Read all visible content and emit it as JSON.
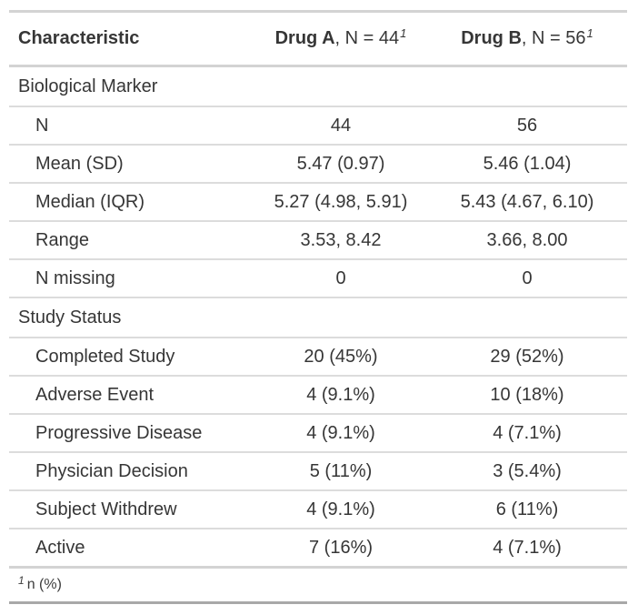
{
  "table": {
    "columns": [
      {
        "label": "Characteristic"
      },
      {
        "name": "Drug A",
        "n_label": ", N = 44",
        "footnote_mark": "1"
      },
      {
        "name": "Drug B",
        "n_label": ", N = 56",
        "footnote_mark": "1"
      }
    ],
    "groups": [
      {
        "label": "Biological Marker",
        "rows": [
          {
            "label": "N",
            "drug_a": "44",
            "drug_b": "56"
          },
          {
            "label": "Mean (SD)",
            "drug_a": "5.47 (0.97)",
            "drug_b": "5.46 (1.04)"
          },
          {
            "label": "Median (IQR)",
            "drug_a": "5.27 (4.98, 5.91)",
            "drug_b": "5.43 (4.67, 6.10)"
          },
          {
            "label": "Range",
            "drug_a": "3.53, 8.42",
            "drug_b": "3.66, 8.00"
          },
          {
            "label": "N missing",
            "drug_a": "0",
            "drug_b": "0"
          }
        ]
      },
      {
        "label": "Study Status",
        "rows": [
          {
            "label": "Completed Study",
            "drug_a": "20 (45%)",
            "drug_b": "29 (52%)"
          },
          {
            "label": "Adverse Event",
            "drug_a": "4 (9.1%)",
            "drug_b": "10 (18%)"
          },
          {
            "label": "Progressive Disease",
            "drug_a": "4 (9.1%)",
            "drug_b": "4 (7.1%)"
          },
          {
            "label": "Physician Decision",
            "drug_a": "5 (11%)",
            "drug_b": "3 (5.4%)"
          },
          {
            "label": "Subject Withdrew",
            "drug_a": "4 (9.1%)",
            "drug_b": "6 (11%)"
          },
          {
            "label": "Active",
            "drug_a": "7 (16%)",
            "drug_b": "4 (7.1%)"
          }
        ]
      }
    ],
    "footnote": {
      "mark": "1",
      "text": "n (%)"
    }
  },
  "colors": {
    "text": "#363636",
    "border_top": "#d3d3d3",
    "border_row": "#dcdcdc",
    "border_bottom": "#a8a8a8",
    "background": "#ffffff"
  }
}
